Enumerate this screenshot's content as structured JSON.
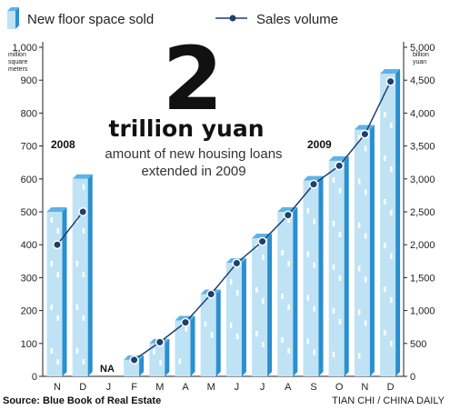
{
  "legend": {
    "bars_label": "New floor space sold",
    "line_label": "Sales volume"
  },
  "left_axis": {
    "unit_lines": [
      "million",
      "square",
      "meters"
    ],
    "ticks": [
      "1,000",
      "900",
      "800",
      "700",
      "600",
      "500",
      "400",
      "300",
      "200",
      "100",
      "0"
    ]
  },
  "right_axis": {
    "unit_lines": [
      "billion",
      "yuan"
    ],
    "ticks": [
      "5,000",
      "4,500",
      "4,000",
      "3,500",
      "3,000",
      "2,500",
      "2,000",
      "1,500",
      "1,000",
      "500",
      "0"
    ]
  },
  "callout": {
    "number": "2",
    "unit": "trillion yuan",
    "line1": "amount of new housing loans",
    "line2": "extended in 2009"
  },
  "year_labels": {
    "y2008": "2008",
    "y2009": "2009"
  },
  "na_label": "NA",
  "footer": {
    "source": "Source: Blue Book of Real Estate",
    "credit": "TIAN CHI / CHINA DAILY"
  },
  "colors": {
    "bar_front": "#bfe3f5",
    "bar_side": "#2a8fd0",
    "bar_top": "#5bb3e6",
    "window": "#ffffff",
    "line": "#1f3f6e",
    "marker": "#1f3f6e",
    "axis": "#222222"
  },
  "chart_data": {
    "type": "bar",
    "categories": [
      "N",
      "D",
      "J",
      "F",
      "M",
      "A",
      "M",
      "J",
      "J",
      "A",
      "S",
      "O",
      "N",
      "D"
    ],
    "series": [
      {
        "name": "New floor space sold",
        "axis": "left",
        "values": [
          500,
          600,
          null,
          50,
          100,
          170,
          250,
          345,
          420,
          500,
          595,
          655,
          750,
          920
        ]
      },
      {
        "name": "Sales volume",
        "type": "line",
        "axis": "right",
        "values": [
          2000,
          2500,
          null,
          250,
          520,
          820,
          1250,
          1720,
          2050,
          2450,
          2920,
          3200,
          3680,
          4480
        ]
      }
    ],
    "left_ylim": [
      0,
      1000
    ],
    "right_ylim": [
      0,
      5000
    ],
    "left_ylabel": "million square meters",
    "right_ylabel": "billion yuan",
    "missing": {
      "category_index": 2,
      "label": "NA"
    },
    "annotations": [
      "2008",
      "2009"
    ],
    "grid": false,
    "legend_position": "top"
  }
}
